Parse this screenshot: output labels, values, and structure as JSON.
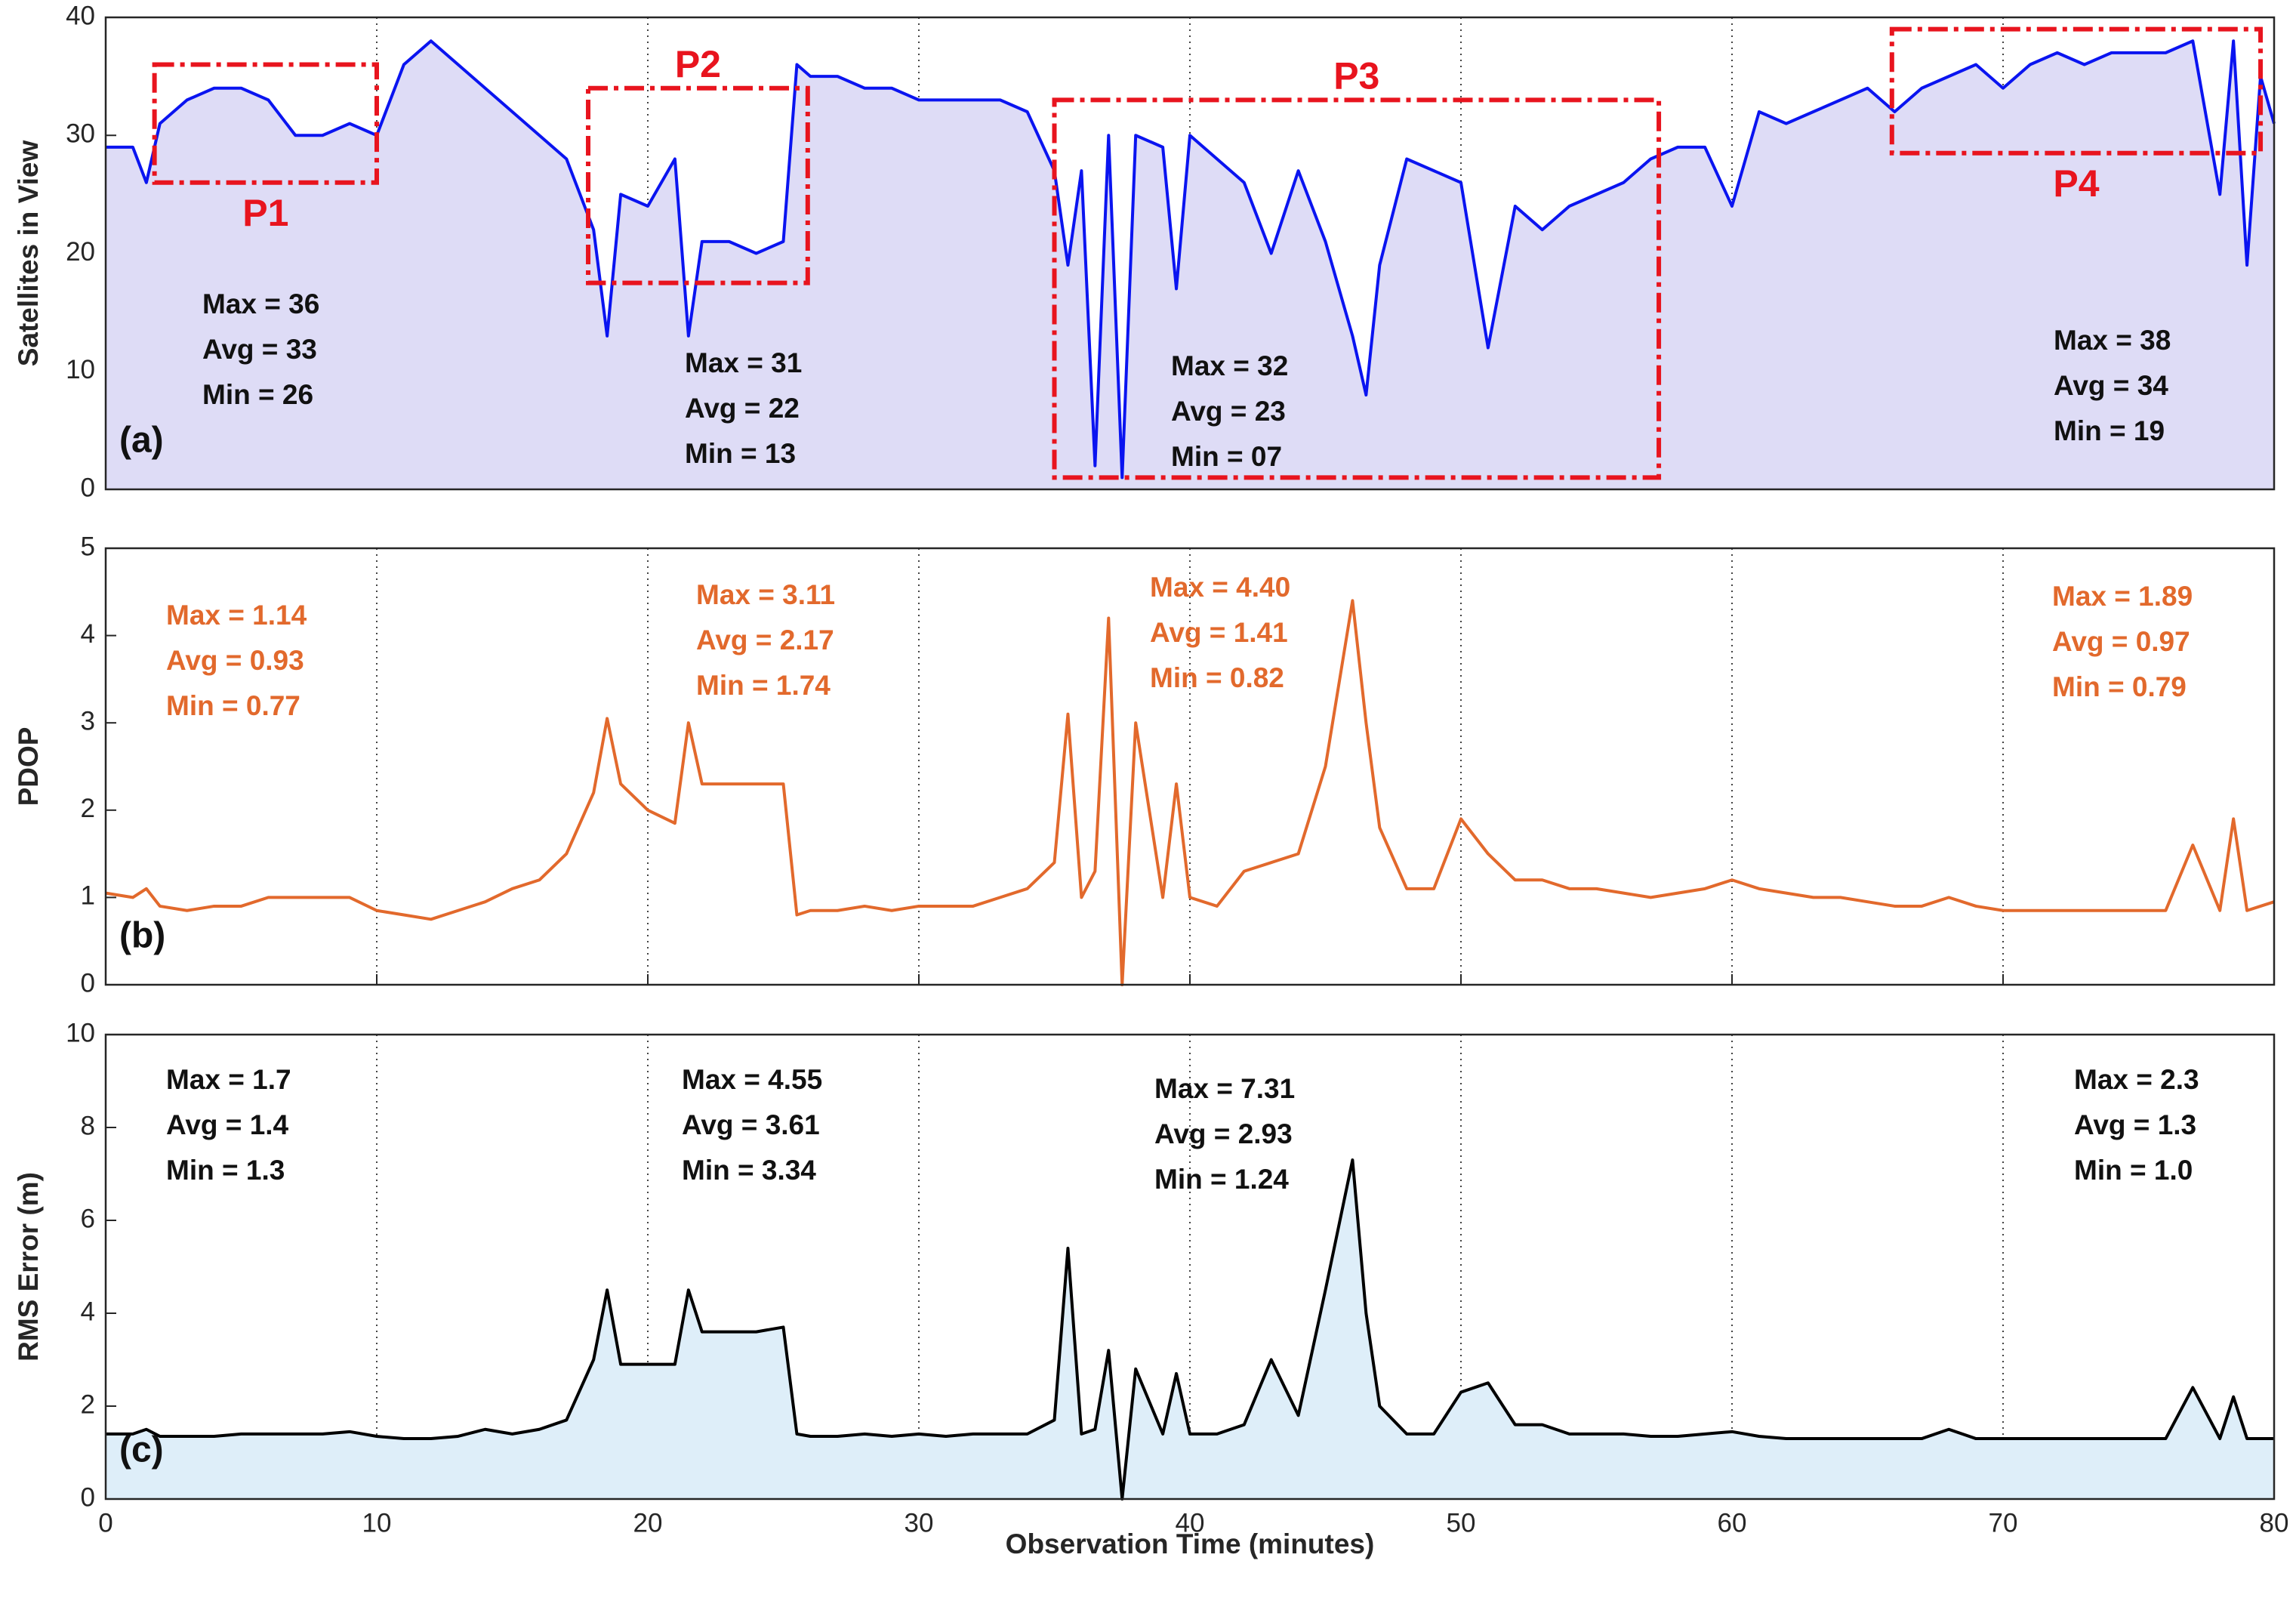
{
  "chart_data": [
    {
      "type": "line",
      "ylabel": "Satellites in View",
      "panel_label": "(a)",
      "xlim": [
        0,
        80
      ],
      "xticks": [
        0,
        10,
        20,
        30,
        40,
        50,
        60,
        70,
        80
      ],
      "show_xtick_labels": false,
      "ylim": [
        0,
        40
      ],
      "yticks": [
        0,
        10,
        20,
        30,
        40
      ],
      "grid": "x",
      "x": [
        0,
        1,
        1.5,
        2,
        3,
        4,
        5,
        6,
        7,
        8,
        9,
        10,
        11,
        12,
        13,
        14,
        15,
        16,
        17,
        18,
        18.5,
        19,
        20,
        21,
        21.5,
        22,
        23,
        24,
        25,
        25.5,
        26,
        27,
        28,
        29,
        30,
        31,
        32,
        33,
        34,
        35,
        35.5,
        36,
        36.5,
        37,
        37.5,
        38,
        39,
        39.5,
        40,
        41,
        42,
        43,
        44,
        45,
        46,
        46.5,
        47,
        48,
        49,
        50,
        51,
        52,
        53,
        54,
        55,
        56,
        57,
        58,
        59,
        60,
        61,
        62,
        63,
        64,
        65,
        66,
        67,
        68,
        69,
        70,
        71,
        72,
        73,
        74,
        75,
        76,
        77,
        78,
        78.5,
        79,
        79.5,
        80
      ],
      "series": [
        {
          "color": "#0a14f0",
          "area_color": "#dedcf6",
          "values": [
            29,
            29,
            26,
            31,
            33,
            34,
            34,
            33,
            30,
            30,
            31,
            30,
            36,
            38,
            36,
            34,
            32,
            30,
            28,
            22,
            13,
            25,
            24,
            28,
            13,
            21,
            21,
            20,
            21,
            36,
            35,
            35,
            34,
            34,
            33,
            33,
            33,
            33,
            32,
            27,
            19,
            27,
            2,
            30,
            1,
            30,
            29,
            17,
            30,
            28,
            26,
            20,
            27,
            21,
            13,
            8,
            19,
            28,
            27,
            26,
            12,
            24,
            22,
            24,
            25,
            26,
            28,
            29,
            29,
            24,
            32,
            31,
            32,
            33,
            34,
            32,
            34,
            35,
            36,
            34,
            36,
            37,
            36,
            37,
            37,
            37,
            38,
            25,
            38,
            19,
            35,
            31
          ]
        }
      ],
      "regions": [
        {
          "label": "P1",
          "x": [
            1.8,
            10
          ],
          "y": [
            26,
            36
          ],
          "color": "#e8141e"
        },
        {
          "label": "P2",
          "x": [
            17.8,
            25.9
          ],
          "y": [
            17.5,
            34
          ],
          "color": "#e8141e"
        },
        {
          "label": "P3",
          "x": [
            35,
            57.3
          ],
          "y": [
            1,
            33
          ],
          "color": "#e8141e"
        },
        {
          "label": "P4",
          "x": [
            65.9,
            79.5
          ],
          "y": [
            28.5,
            39
          ],
          "color": "#e8141e"
        }
      ],
      "annotations": [
        [
          "Max = 36",
          "Avg = 33",
          "Min = 26"
        ],
        [
          "Max = 31",
          "Avg = 22",
          "Min = 13"
        ],
        [
          "Max = 32",
          "Avg = 23",
          "Min = 07"
        ],
        [
          "Max = 38",
          "Avg = 34",
          "Min = 19"
        ]
      ],
      "annotation_color": "#111111"
    },
    {
      "type": "line",
      "ylabel": "PDOP",
      "panel_label": "(b)",
      "xlim": [
        0,
        80
      ],
      "xticks": [
        0,
        10,
        20,
        30,
        40,
        50,
        60,
        70,
        80
      ],
      "show_xtick_labels": false,
      "ylim": [
        0,
        5
      ],
      "yticks": [
        0,
        1,
        2,
        3,
        4,
        5
      ],
      "grid": "x",
      "x": [
        0,
        1,
        1.5,
        2,
        3,
        4,
        5,
        6,
        7,
        8,
        9,
        10,
        11,
        12,
        13,
        14,
        15,
        16,
        17,
        18,
        18.5,
        19,
        20,
        21,
        21.5,
        22,
        23,
        24,
        25,
        25.5,
        26,
        27,
        28,
        29,
        30,
        31,
        32,
        33,
        34,
        35,
        35.5,
        36,
        36.5,
        37,
        37.5,
        38,
        39,
        39.5,
        40,
        41,
        42,
        43,
        44,
        45,
        46,
        46.5,
        47,
        48,
        49,
        50,
        51,
        52,
        53,
        54,
        55,
        56,
        57,
        58,
        59,
        60,
        61,
        62,
        63,
        64,
        65,
        66,
        67,
        68,
        69,
        70,
        71,
        72,
        73,
        74,
        75,
        76,
        77,
        78,
        78.5,
        79,
        79.5,
        80
      ],
      "series": [
        {
          "color": "#e2692c",
          "values": [
            1.05,
            1.0,
            1.1,
            0.9,
            0.85,
            0.9,
            0.9,
            1.0,
            1.0,
            1.0,
            1.0,
            0.85,
            0.8,
            0.75,
            0.85,
            0.95,
            1.1,
            1.2,
            1.5,
            2.2,
            3.05,
            2.3,
            2.0,
            1.85,
            3.0,
            2.3,
            2.3,
            2.3,
            2.3,
            0.8,
            0.85,
            0.85,
            0.9,
            0.85,
            0.9,
            0.9,
            0.9,
            1.0,
            1.1,
            1.4,
            3.1,
            1.0,
            1.3,
            4.2,
            0,
            3.0,
            1.0,
            2.3,
            1.0,
            0.9,
            1.3,
            1.4,
            1.5,
            2.5,
            4.4,
            3.0,
            1.8,
            1.1,
            1.1,
            1.9,
            1.5,
            1.2,
            1.2,
            1.1,
            1.1,
            1.05,
            1.0,
            1.05,
            1.1,
            1.2,
            1.1,
            1.05,
            1.0,
            1.0,
            0.95,
            0.9,
            0.9,
            1.0,
            0.9,
            0.85,
            0.85,
            0.85,
            0.85,
            0.85,
            0.85,
            0.85,
            1.6,
            0.85,
            1.9,
            0.85,
            0.9,
            0.95
          ]
        }
      ],
      "annotations": [
        [
          "Max = 1.14",
          "Avg = 0.93",
          "Min = 0.77"
        ],
        [
          "Max = 3.11",
          "Avg = 2.17",
          "Min = 1.74"
        ],
        [
          "Max = 4.40",
          "Avg = 1.41",
          "Min = 0.82"
        ],
        [
          "Max = 1.89",
          "Avg = 0.97",
          "Min = 0.79"
        ]
      ],
      "annotation_color": "#e2692c"
    },
    {
      "type": "line",
      "ylabel": "RMS Error (m)",
      "panel_label": "(c)",
      "xlabel": "Observation Time (minutes)",
      "xlim": [
        0,
        80
      ],
      "xticks": [
        0,
        10,
        20,
        30,
        40,
        50,
        60,
        70,
        80
      ],
      "show_xtick_labels": true,
      "ylim": [
        0,
        10
      ],
      "yticks": [
        0,
        2,
        4,
        6,
        8,
        10
      ],
      "grid": "x",
      "x": [
        0,
        1,
        1.5,
        2,
        3,
        4,
        5,
        6,
        7,
        8,
        9,
        10,
        11,
        12,
        13,
        14,
        15,
        16,
        17,
        18,
        18.5,
        19,
        20,
        21,
        21.5,
        22,
        23,
        24,
        25,
        25.5,
        26,
        27,
        28,
        29,
        30,
        31,
        32,
        33,
        34,
        35,
        35.5,
        36,
        36.5,
        37,
        37.5,
        38,
        39,
        39.5,
        40,
        41,
        42,
        43,
        44,
        45,
        46,
        46.5,
        47,
        48,
        49,
        50,
        51,
        52,
        53,
        54,
        55,
        56,
        57,
        58,
        59,
        60,
        61,
        62,
        63,
        64,
        65,
        66,
        67,
        68,
        69,
        70,
        71,
        72,
        73,
        74,
        75,
        76,
        77,
        78,
        78.5,
        79,
        79.5,
        80
      ],
      "series": [
        {
          "color": "#000000",
          "area_color": "#deeef9",
          "values": [
            1.4,
            1.4,
            1.5,
            1.35,
            1.35,
            1.35,
            1.4,
            1.4,
            1.4,
            1.4,
            1.45,
            1.35,
            1.3,
            1.3,
            1.35,
            1.5,
            1.4,
            1.5,
            1.7,
            3.0,
            4.5,
            2.9,
            2.9,
            2.9,
            4.5,
            3.6,
            3.6,
            3.6,
            3.7,
            1.4,
            1.35,
            1.35,
            1.4,
            1.35,
            1.4,
            1.35,
            1.4,
            1.4,
            1.4,
            1.7,
            5.4,
            1.4,
            1.5,
            3.2,
            0,
            2.8,
            1.4,
            2.7,
            1.4,
            1.4,
            1.6,
            3.0,
            1.8,
            4.5,
            7.3,
            4.0,
            2.0,
            1.4,
            1.4,
            2.3,
            2.5,
            1.6,
            1.6,
            1.4,
            1.4,
            1.4,
            1.35,
            1.35,
            1.4,
            1.45,
            1.35,
            1.3,
            1.3,
            1.3,
            1.3,
            1.3,
            1.3,
            1.5,
            1.3,
            1.3,
            1.3,
            1.3,
            1.3,
            1.3,
            1.3,
            1.3,
            2.4,
            1.3,
            2.2,
            1.3,
            1.3,
            1.3
          ]
        }
      ],
      "annotations": [
        [
          "Max = 1.7",
          "Avg = 1.4",
          "Min = 1.3"
        ],
        [
          "Max = 4.55",
          "Avg = 3.61",
          "Min = 3.34"
        ],
        [
          "Max = 7.31",
          "Avg = 2.93",
          "Min = 1.24"
        ],
        [
          "Max = 2.3",
          "Avg = 1.3",
          "Min = 1.0"
        ]
      ],
      "annotation_color": "#111111"
    }
  ]
}
